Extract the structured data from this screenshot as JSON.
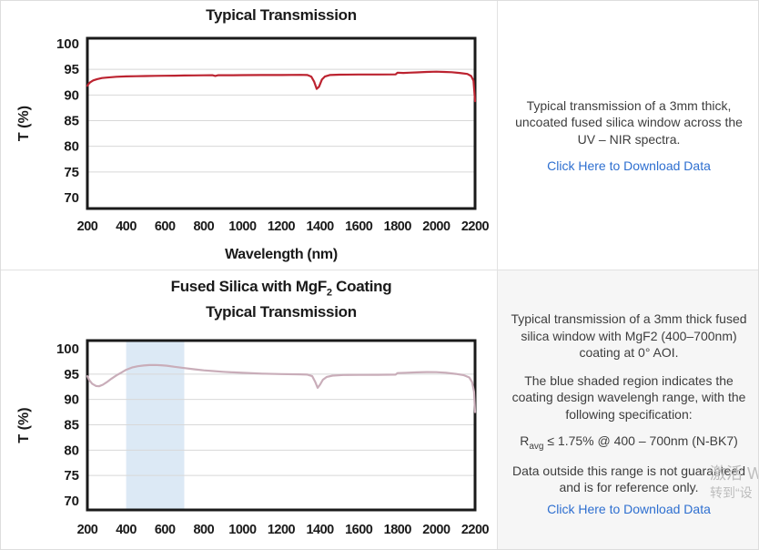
{
  "colors": {
    "line_red": "#bc2330",
    "line_pink": "#c9adb9",
    "band_blue": "#dce9f5",
    "grid": "#d8d8d8",
    "plot_border": "#1a1a1a",
    "link_blue": "#2e6fd0",
    "panel_bg": "#f6f6f6",
    "watermark_gray": "#bdbdbd"
  },
  "panels": {
    "top": {
      "title": "Typical Transmission",
      "description": "Typical transmission of a 3mm thick, uncoated fused silica window across the UV – NIR spectra.",
      "link_label": "Click Here to Download Data"
    },
    "bottom": {
      "title": {
        "pre": "Fused Silica with MgF",
        "sub": "2",
        "post": " Coating",
        "line2": "Typical Transmission"
      },
      "desc1": "Typical transmission of a 3mm thick fused silica window with MgF2 (400–700nm) coating at 0° AOI.",
      "desc2": "The blue shaded region indicates the coating design wavelengh range, with the following specification:",
      "spec": {
        "pre": "R",
        "sub": "avg",
        "post": " ≤ 1.75% @ 400 – 700nm (N-BK7)"
      },
      "desc3": "Data outside this range is not guaranteed and is for reference only.",
      "link_label": "Click Here to Download Data"
    }
  },
  "watermark": {
    "line1": "激活 W",
    "line2": "转到“设"
  },
  "chart_data": [
    {
      "type": "line",
      "title": "Typical Transmission",
      "xlabel": "Wavelength (nm)",
      "ylabel": "T (%)",
      "xlim": [
        200,
        2200
      ],
      "ylim": [
        70,
        100
      ],
      "x_ticks": [
        200,
        400,
        600,
        800,
        1000,
        1200,
        1400,
        1600,
        1800,
        2000,
        2200
      ],
      "y_ticks": [
        70,
        75,
        80,
        85,
        90,
        95,
        100
      ],
      "grid": "horizontal",
      "legend": "none",
      "line_color": "#bc2330",
      "series": [
        {
          "name": "Uncoated fused silica 3mm",
          "points": [
            [
              200,
              91.8
            ],
            [
              205,
              92.1
            ],
            [
              215,
              92.5
            ],
            [
              230,
              92.85
            ],
            [
              250,
              93.1
            ],
            [
              275,
              93.3
            ],
            [
              300,
              93.4
            ],
            [
              350,
              93.55
            ],
            [
              400,
              93.62
            ],
            [
              450,
              93.67
            ],
            [
              500,
              93.7
            ],
            [
              550,
              93.73
            ],
            [
              600,
              93.75
            ],
            [
              650,
              93.77
            ],
            [
              700,
              93.8
            ],
            [
              750,
              93.82
            ],
            [
              800,
              93.84
            ],
            [
              845,
              93.86
            ],
            [
              860,
              93.72
            ],
            [
              875,
              93.85
            ],
            [
              950,
              93.85
            ],
            [
              1000,
              93.87
            ],
            [
              1100,
              93.9
            ],
            [
              1200,
              93.9
            ],
            [
              1300,
              93.93
            ],
            [
              1335,
              93.9
            ],
            [
              1355,
              93.6
            ],
            [
              1370,
              92.6
            ],
            [
              1383,
              91.2
            ],
            [
              1395,
              91.6
            ],
            [
              1410,
              93.0
            ],
            [
              1425,
              93.6
            ],
            [
              1450,
              93.9
            ],
            [
              1500,
              93.97
            ],
            [
              1600,
              94.0
            ],
            [
              1700,
              94.0
            ],
            [
              1790,
              94.02
            ],
            [
              1800,
              94.35
            ],
            [
              1830,
              94.3
            ],
            [
              1860,
              94.35
            ],
            [
              1900,
              94.4
            ],
            [
              1950,
              94.5
            ],
            [
              2000,
              94.55
            ],
            [
              2040,
              94.5
            ],
            [
              2080,
              94.45
            ],
            [
              2120,
              94.3
            ],
            [
              2160,
              94.1
            ],
            [
              2180,
              93.7
            ],
            [
              2192,
              92.8
            ],
            [
              2200,
              88.8
            ]
          ]
        }
      ]
    },
    {
      "type": "line",
      "title": "Fused Silica with MgF2 Coating Typical Transmission",
      "xlabel": "",
      "ylabel": "T (%)",
      "xlim": [
        200,
        2200
      ],
      "ylim": [
        70,
        100
      ],
      "x_ticks": [
        200,
        400,
        600,
        800,
        1000,
        1200,
        1400,
        1600,
        1800,
        2000,
        2200
      ],
      "y_ticks": [
        70,
        75,
        80,
        85,
        90,
        95,
        100
      ],
      "grid": "horizontal",
      "legend": "none",
      "line_color": "#c9adb9",
      "shaded_region": {
        "x_range": [
          400,
          700
        ],
        "color": "#dce9f5",
        "label": "coating design wavelength range"
      },
      "series": [
        {
          "name": "Fused silica 3mm with MgF2 coating",
          "points": [
            [
              200,
              94.6
            ],
            [
              210,
              93.8
            ],
            [
              225,
              93.1
            ],
            [
              245,
              92.65
            ],
            [
              260,
              92.6
            ],
            [
              280,
              92.9
            ],
            [
              300,
              93.4
            ],
            [
              325,
              94.1
            ],
            [
              350,
              94.75
            ],
            [
              375,
              95.3
            ],
            [
              400,
              95.85
            ],
            [
              430,
              96.3
            ],
            [
              460,
              96.55
            ],
            [
              490,
              96.7
            ],
            [
              520,
              96.78
            ],
            [
              550,
              96.8
            ],
            [
              580,
              96.75
            ],
            [
              610,
              96.65
            ],
            [
              650,
              96.45
            ],
            [
              700,
              96.2
            ],
            [
              750,
              95.95
            ],
            [
              800,
              95.75
            ],
            [
              850,
              95.6
            ],
            [
              900,
              95.45
            ],
            [
              950,
              95.35
            ],
            [
              1000,
              95.25
            ],
            [
              1100,
              95.1
            ],
            [
              1200,
              95.0
            ],
            [
              1300,
              94.95
            ],
            [
              1335,
              94.9
            ],
            [
              1360,
              94.6
            ],
            [
              1375,
              93.5
            ],
            [
              1388,
              92.3
            ],
            [
              1400,
              92.9
            ],
            [
              1415,
              93.9
            ],
            [
              1435,
              94.45
            ],
            [
              1465,
              94.7
            ],
            [
              1520,
              94.82
            ],
            [
              1600,
              94.85
            ],
            [
              1700,
              94.87
            ],
            [
              1790,
              94.9
            ],
            [
              1800,
              95.2
            ],
            [
              1850,
              95.28
            ],
            [
              1900,
              95.35
            ],
            [
              1950,
              95.4
            ],
            [
              2000,
              95.38
            ],
            [
              2050,
              95.28
            ],
            [
              2100,
              95.05
            ],
            [
              2140,
              94.8
            ],
            [
              2170,
              94.35
            ],
            [
              2185,
              93.4
            ],
            [
              2195,
              91.5
            ],
            [
              2200,
              87.5
            ]
          ]
        }
      ]
    }
  ]
}
